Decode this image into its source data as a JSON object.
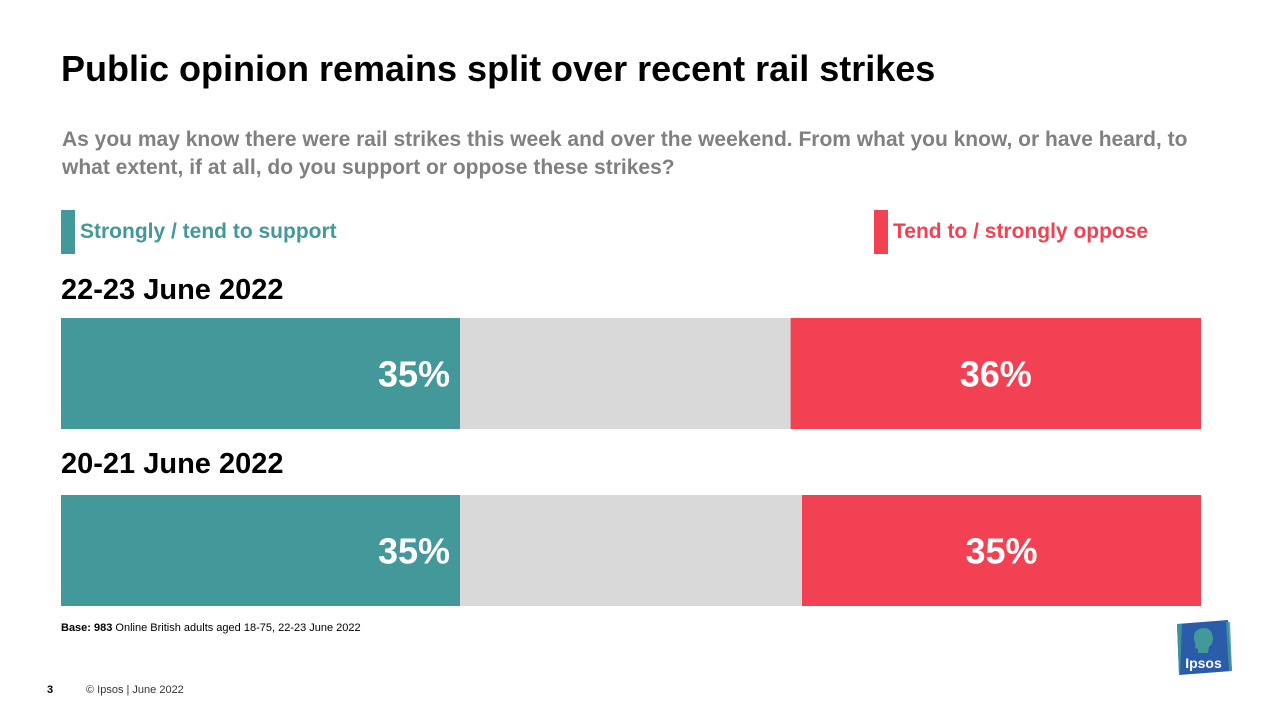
{
  "title": "Public opinion remains split over recent rail strikes",
  "question": "As you may know there were rail strikes this week and over the weekend. From what you know, or have heard, to what extent, if at all, do you support or oppose these strikes?",
  "legend": {
    "support": "Strongly / tend to support",
    "oppose": "Tend to / strongly oppose"
  },
  "colors": {
    "support": "#43999A",
    "oppose": "#F24153",
    "neutral": "#D9D9D9",
    "logo": "#2A5CAA"
  },
  "base_note": {
    "prefix": "Base: 983",
    "text": " Online British adults aged 18-75, 22-23 June 2022"
  },
  "footer": {
    "page_number": "3",
    "copyright": "© Ipsos | June 2022"
  },
  "logo_text": "Ipsos",
  "chart_data": {
    "type": "bar",
    "orientation": "horizontal-stacked",
    "categories": [
      "22-23 June 2022",
      "20-21 June 2022"
    ],
    "series": [
      {
        "name": "Strongly / tend to support",
        "values": [
          35,
          35
        ],
        "labels": [
          "35%",
          "35%"
        ]
      },
      {
        "name": "",
        "values": [
          29,
          30
        ],
        "labels": [
          "",
          ""
        ]
      },
      {
        "name": "Tend to / strongly oppose",
        "values": [
          36,
          35
        ],
        "labels": [
          "36%",
          "35%"
        ]
      }
    ],
    "xlim": [
      0,
      100
    ],
    "grid": false,
    "legend_position": "top"
  }
}
